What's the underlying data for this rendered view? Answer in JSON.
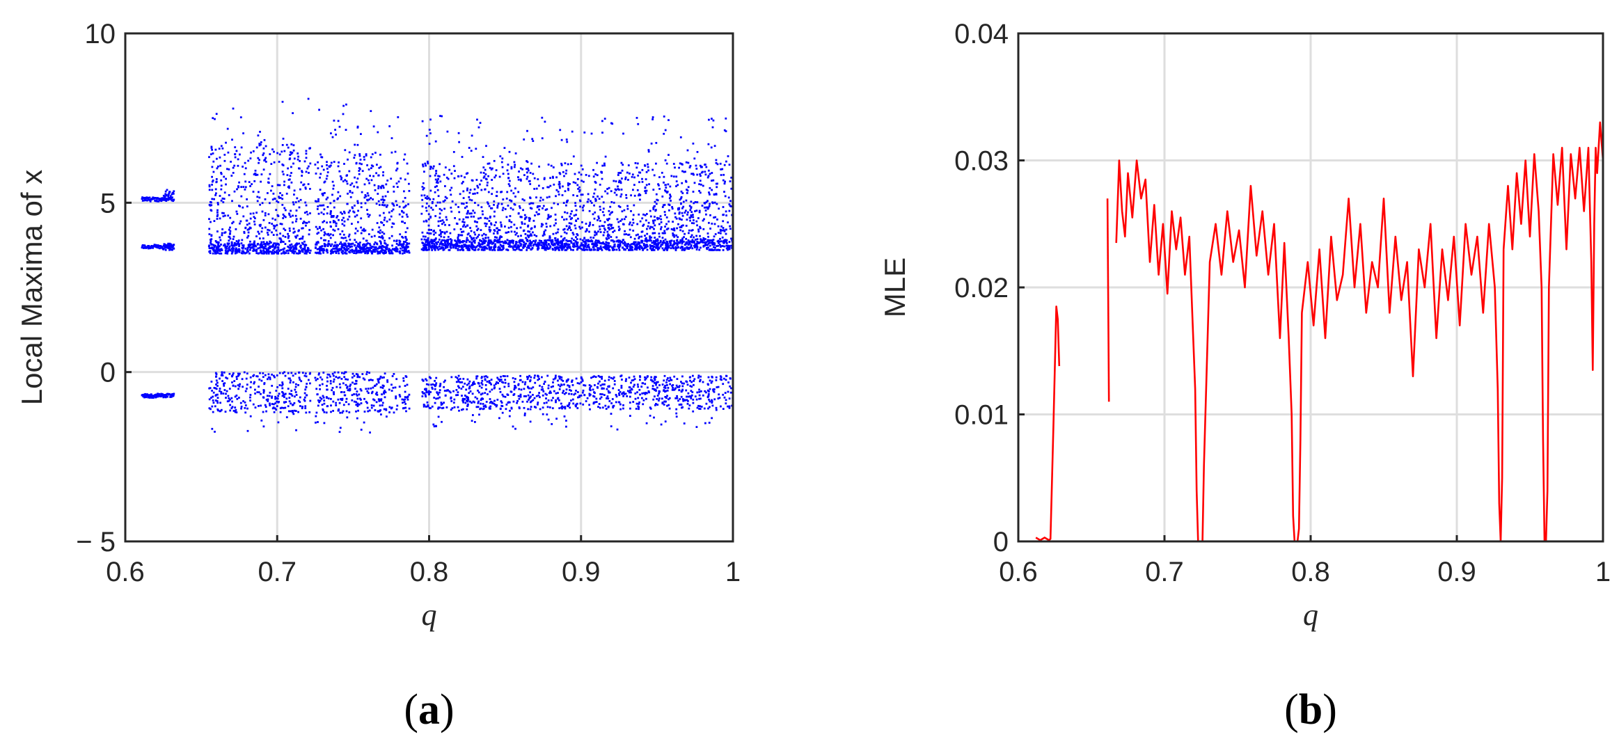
{
  "chart_data": [
    {
      "panel": "(a)",
      "type": "scatter",
      "xlabel": "q",
      "ylabel": "Local Maxima of x",
      "xlim": [
        0.6,
        1.0
      ],
      "ylim": [
        -5,
        10
      ],
      "xticks": [
        "0.6",
        "0.7",
        "0.8",
        "0.9",
        "1"
      ],
      "yticks": [
        "− 5",
        "0",
        "5",
        "10"
      ],
      "grid": true,
      "color": "#0000ff",
      "point_description": "bifurcation diagram; dense scatter of local maxima",
      "bands": [
        {
          "x": [
            0.611,
            0.632
          ],
          "lines": [
            5.1,
            3.7,
            -0.7
          ]
        },
        {
          "x": [
            0.655,
            0.722
          ],
          "upper": [
            3.5,
            6.8
          ],
          "lower": [
            -1.2,
            0.0
          ]
        },
        {
          "x": [
            0.725,
            0.787
          ],
          "upper": [
            3.5,
            6.5
          ],
          "lower": [
            -1.2,
            0.0
          ]
        },
        {
          "x": [
            0.795,
            1.0
          ],
          "upper": [
            3.6,
            6.2
          ],
          "lower": [
            -1.1,
            -0.1
          ]
        }
      ],
      "gaps": [
        [
          0.633,
          0.654
        ],
        [
          0.722,
          0.726
        ],
        [
          0.787,
          0.795
        ]
      ]
    },
    {
      "panel": "(b)",
      "type": "line",
      "xlabel": "q",
      "ylabel": "MLE",
      "xlim": [
        0.6,
        1.0
      ],
      "ylim": [
        0,
        0.04
      ],
      "xticks": [
        "0.6",
        "0.7",
        "0.8",
        "0.9",
        "1"
      ],
      "yticks": [
        "0",
        "0.01",
        "0.02",
        "0.03",
        "0.04"
      ],
      "grid": true,
      "color": "#ff0000",
      "series": [
        {
          "segments": [
            {
              "x": [
                0.612,
                0.615,
                0.618,
                0.621,
                0.622,
                0.624,
                0.626,
                0.627,
                0.628
              ],
              "y": [
                0.0003,
                0.0001,
                0.0003,
                0.0001,
                0.0002,
                0.009,
                0.0185,
                0.0175,
                0.0138
              ]
            },
            {
              "x": [
                0.661,
                0.662
              ],
              "y": [
                0.027,
                0.011
              ]
            },
            {
              "x": [
                0.667,
                0.669,
                0.671,
                0.673,
                0.675,
                0.678,
                0.681,
                0.684,
                0.687,
                0.69,
                0.693,
                0.696,
                0.699,
                0.702,
                0.705,
                0.708,
                0.711,
                0.714,
                0.717,
                0.719,
                0.721,
                0.722,
                0.723,
                0.724,
                0.726,
                0.727
              ],
              "y": [
                0.0235,
                0.03,
                0.026,
                0.024,
                0.029,
                0.0255,
                0.03,
                0.027,
                0.0285,
                0.022,
                0.0265,
                0.021,
                0.025,
                0.0195,
                0.026,
                0.023,
                0.0255,
                0.021,
                0.024,
                0.018,
                0.012,
                0.004,
                0.0,
                0.0,
                0.0,
                0.006
              ]
            },
            {
              "x": [
                0.727,
                0.731,
                0.735,
                0.739,
                0.743,
                0.747,
                0.751,
                0.755,
                0.759,
                0.763,
                0.767,
                0.771,
                0.775,
                0.779,
                0.782,
                0.785,
                0.787,
                0.788,
                0.789,
                0.79,
                0.791,
                0.792,
                0.793,
                0.794
              ],
              "y": [
                0.006,
                0.022,
                0.025,
                0.021,
                0.026,
                0.022,
                0.0245,
                0.02,
                0.028,
                0.0225,
                0.026,
                0.021,
                0.025,
                0.016,
                0.0235,
                0.016,
                0.01,
                0.002,
                0.0,
                0.0,
                0.0,
                0.001,
                0.008,
                0.018
              ]
            },
            {
              "x": [
                0.794,
                0.798,
                0.802,
                0.806,
                0.81,
                0.814,
                0.818,
                0.822,
                0.826,
                0.83,
                0.834,
                0.838,
                0.842,
                0.846,
                0.85,
                0.854,
                0.858,
                0.862,
                0.866,
                0.87,
                0.874,
                0.878,
                0.882,
                0.886,
                0.89,
                0.894,
                0.898,
                0.902,
                0.906,
                0.91,
                0.914,
                0.918,
                0.922,
                0.926,
                0.928,
                0.929,
                0.93,
                0.931,
                0.932
              ],
              "y": [
                0.018,
                0.022,
                0.017,
                0.023,
                0.016,
                0.024,
                0.019,
                0.021,
                0.027,
                0.02,
                0.025,
                0.018,
                0.022,
                0.02,
                0.027,
                0.018,
                0.024,
                0.019,
                0.022,
                0.013,
                0.023,
                0.02,
                0.025,
                0.016,
                0.023,
                0.019,
                0.024,
                0.017,
                0.025,
                0.021,
                0.024,
                0.018,
                0.025,
                0.02,
                0.012,
                0.003,
                0.0,
                0.005,
                0.023
              ]
            },
            {
              "x": [
                0.932,
                0.935,
                0.938,
                0.941,
                0.944,
                0.947,
                0.95,
                0.953,
                0.956,
                0.958,
                0.959,
                0.96,
                0.961,
                0.962,
                0.963
              ],
              "y": [
                0.023,
                0.028,
                0.023,
                0.029,
                0.025,
                0.03,
                0.024,
                0.0305,
                0.026,
                0.02,
                0.008,
                0.0,
                0.0,
                0.004,
                0.02
              ]
            },
            {
              "x": [
                0.963,
                0.966,
                0.969,
                0.972,
                0.975,
                0.978,
                0.981,
                0.984,
                0.987,
                0.99,
                0.992,
                0.993,
                0.994,
                0.995,
                0.996,
                0.998,
                1.0
              ],
              "y": [
                0.02,
                0.0305,
                0.0265,
                0.031,
                0.023,
                0.0305,
                0.027,
                0.031,
                0.026,
                0.031,
                0.022,
                0.0135,
                0.025,
                0.031,
                0.029,
                0.033,
                0.03
              ]
            }
          ]
        }
      ]
    }
  ]
}
